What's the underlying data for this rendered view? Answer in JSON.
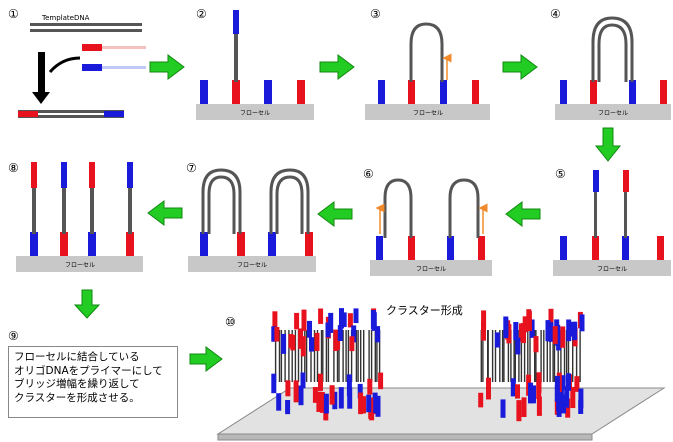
{
  "steps": {
    "s1": "①",
    "s2": "②",
    "s3": "③",
    "s4": "④",
    "s5": "⑤",
    "s6": "⑥",
    "s7": "⑦",
    "s8": "⑧",
    "s9": "⑨",
    "s10": "⑩"
  },
  "template_label": "TemplateDNA",
  "flowcell_label": "フローセル",
  "cluster_label": "クラスター形成",
  "description_lines": [
    "フローセルに結合している",
    "オリゴDNAをプライマーにして",
    "ブリッジ増幅を繰り返して",
    "クラスターを形成させる。"
  ],
  "colors": {
    "primer_red": "#e8121f",
    "primer_blue": "#1a1adb",
    "arrow_green": "#22cc22",
    "flowcell_gray": "#c8c8c8",
    "new_strand_orange": "#f08a2a"
  }
}
